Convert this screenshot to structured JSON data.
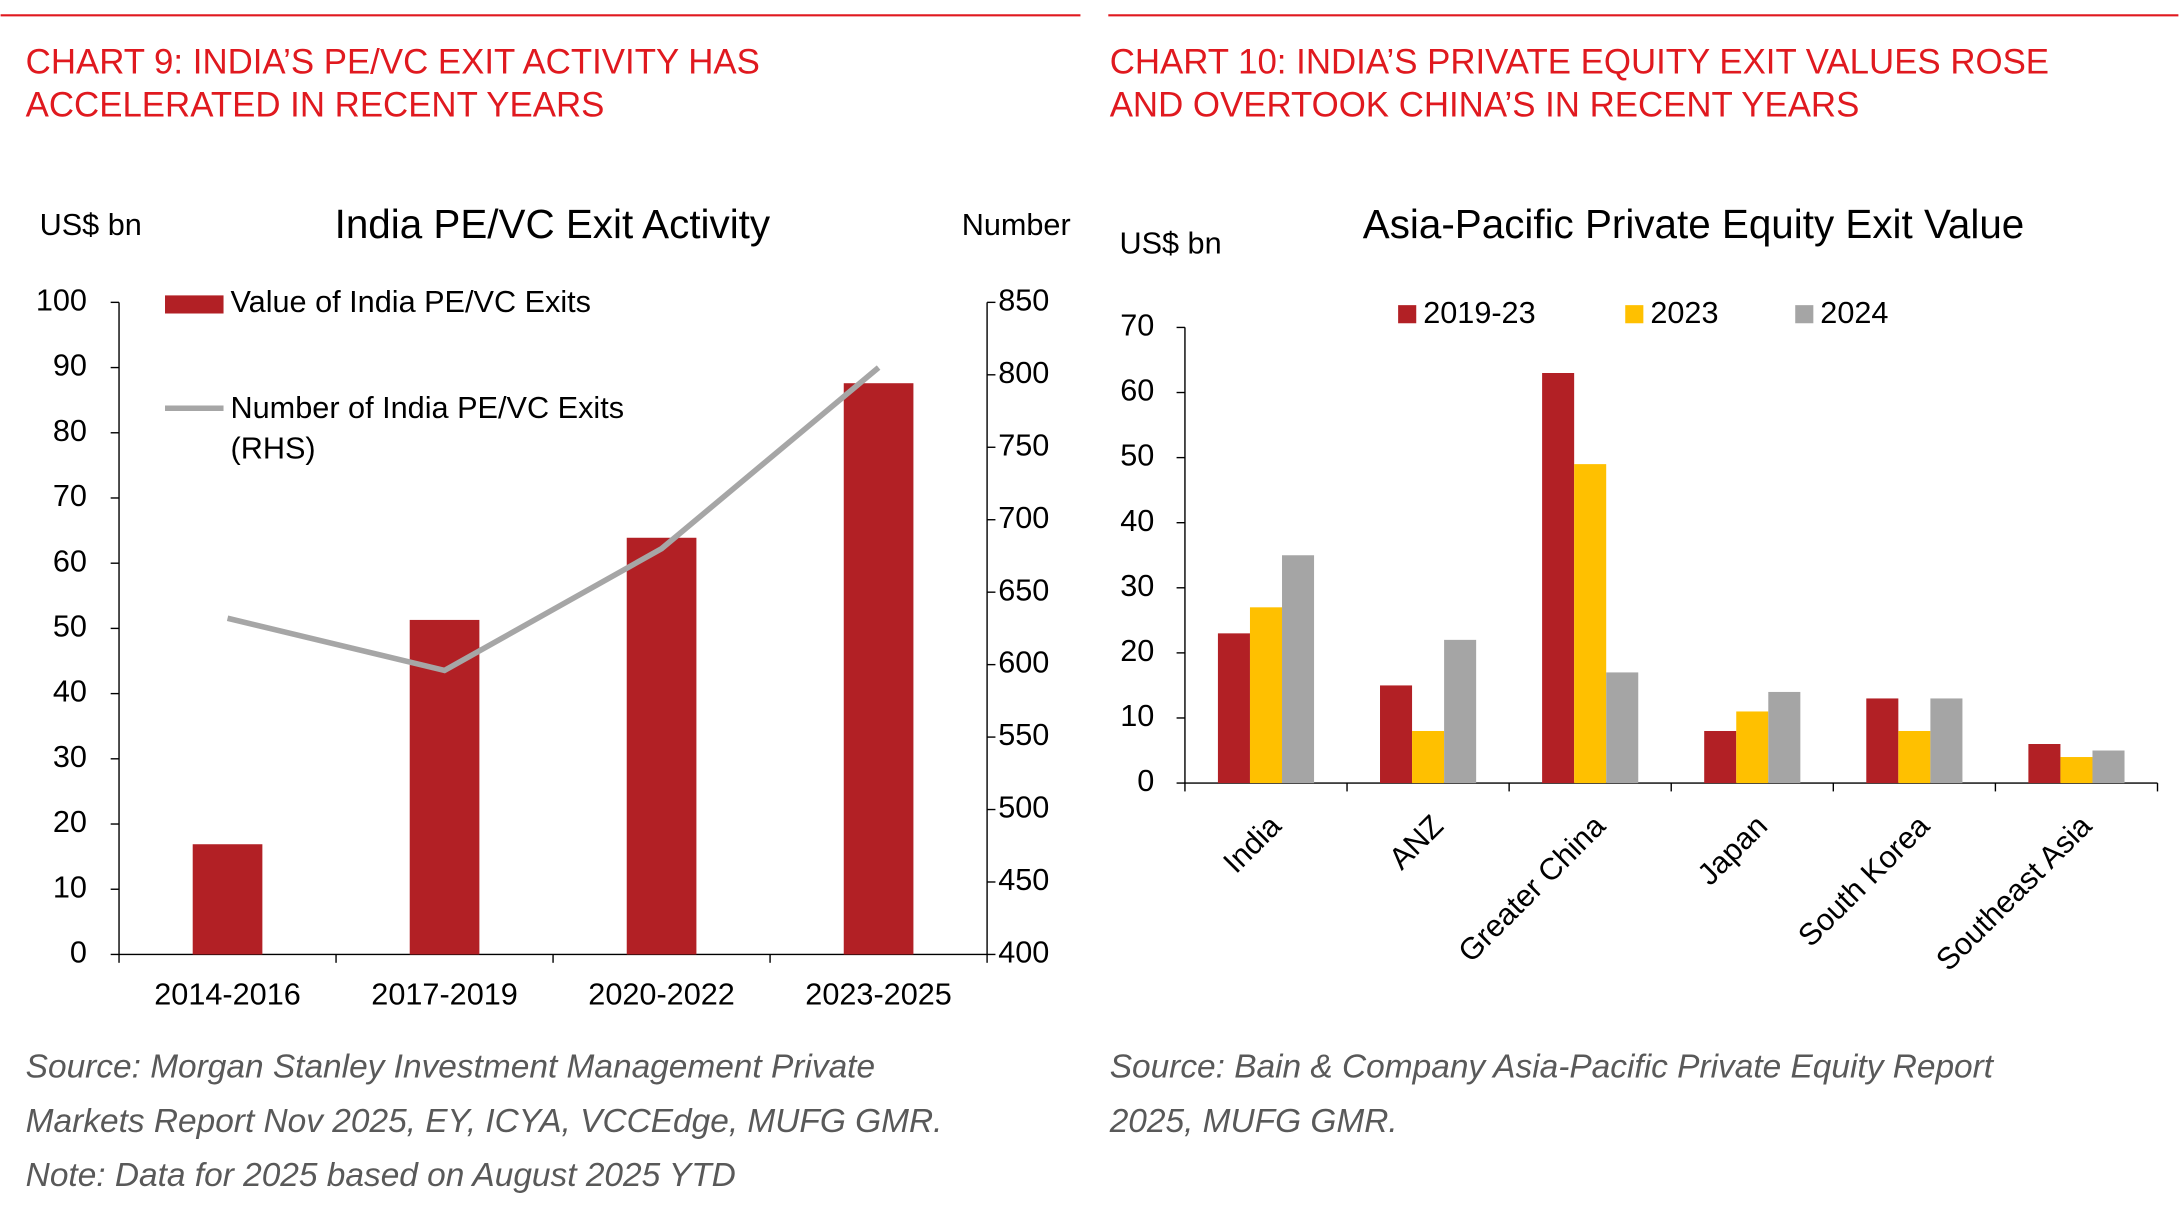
{
  "chart_data": [
    {
      "type": "combo",
      "header": [
        "CHART 9: INDIA’S PE/VC EXIT ACTIVITY HAS",
        "ACCELERATED IN RECENT YEARS"
      ],
      "title": "India PE/VC Exit Activity",
      "y_label": "US$ bn",
      "y2_label": "Number",
      "categories": [
        "2014-2016",
        "2017-2019",
        "2020-2022",
        "2023-2025"
      ],
      "series": [
        {
          "name": "Value of India PE/VC Exits",
          "type": "bar",
          "color": "#b22025",
          "values": [
            16.9,
            51.3,
            63.9,
            87.6
          ]
        },
        {
          "name": "Number of India PE/VC Exits (RHS)",
          "type": "line",
          "axis": "y2",
          "color": "#a6a6a6",
          "values": [
            632,
            596,
            680,
            805
          ]
        }
      ],
      "ylim": [
        0,
        100
      ],
      "yticks": [
        0,
        10,
        20,
        30,
        40,
        50,
        60,
        70,
        80,
        90,
        100
      ],
      "y2lim": [
        400,
        850
      ],
      "y2ticks": [
        400,
        450,
        500,
        550,
        600,
        650,
        700,
        750,
        800,
        850
      ],
      "source": [
        "Source: Morgan Stanley Investment Management Private",
        "Markets Report Nov 2025, EY, ICYA, VCCEdge, MUFG GMR.",
        "Note: Data for 2025 based on August 2025 YTD"
      ]
    },
    {
      "type": "bar",
      "header": [
        "CHART 10: INDIA’S PRIVATE EQUITY EXIT VALUES ROSE",
        "AND OVERTOOK CHINA’S IN RECENT YEARS"
      ],
      "title": "Asia-Pacific Private Equity Exit Value",
      "y_label": "US$ bn",
      "categories": [
        "India",
        "ANZ",
        "Greater China",
        "Japan",
        "South Korea",
        "Southeast Asia"
      ],
      "series": [
        {
          "name": "2019-23",
          "color": "#b22025",
          "values": [
            23,
            15,
            63,
            8,
            13,
            6
          ]
        },
        {
          "name": "2023",
          "color": "#ffc000",
          "values": [
            27,
            8,
            49,
            11,
            8,
            4
          ]
        },
        {
          "name": "2024",
          "color": "#a5a5a5",
          "values": [
            35,
            22,
            17,
            14,
            13,
            5
          ]
        }
      ],
      "ylim": [
        0,
        70
      ],
      "yticks": [
        0,
        10,
        20,
        30,
        40,
        50,
        60,
        70
      ],
      "source": [
        "Source: Bain & Company Asia-Pacific Private Equity Report",
        "2025, MUFG GMR."
      ]
    }
  ]
}
